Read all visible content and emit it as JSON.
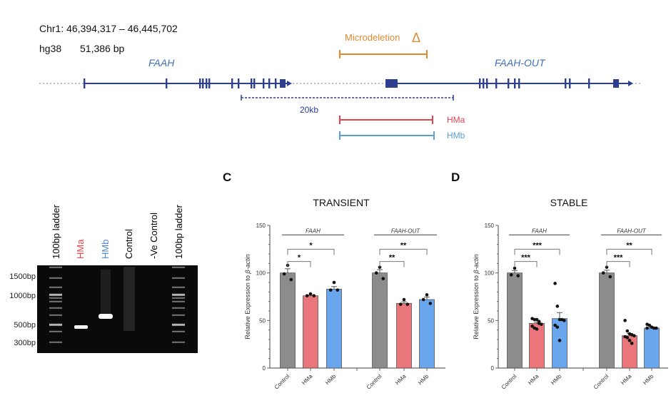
{
  "map": {
    "coordinates": "Chr1: 46,394,317 – 46,445,702",
    "assembly": "hg38",
    "length": "51,386 bp",
    "gene_left": "FAAH",
    "gene_right": "FAAH-OUT",
    "microdeletion_label": "Microdeletion",
    "delta_symbol": "Δ",
    "scale_label": "20kb",
    "hma_label": "HMa",
    "hmb_label": "HMb",
    "colors": {
      "gene": "#2e3f8f",
      "microdeletion": "#e08a2e",
      "hma": "#e0464f",
      "hmb": "#5a9fd6",
      "label_blue": "#3f6fb5"
    }
  },
  "gel": {
    "lanes": [
      {
        "label": "100bp ladder",
        "color": "#000000"
      },
      {
        "label": "HMa",
        "color": "#e0464f"
      },
      {
        "label": "HMb",
        "color": "#4f86c9"
      },
      {
        "label": "Control",
        "color": "#000000"
      },
      {
        "label": "-Ve Control",
        "color": "#000000"
      },
      {
        "label": "100bp ladder",
        "color": "#000000"
      }
    ],
    "markers": [
      "1500bp",
      "1000bp",
      "500bp",
      "300bp"
    ]
  },
  "chart_data": [
    {
      "panel": "C",
      "type": "bar",
      "title": "TRANSIENT",
      "ylabel": "Relative Expression to ",
      "ylabel_italic": "β-actin",
      "ylim": [
        0,
        150
      ],
      "yticks": [
        "0",
        "50",
        "100",
        "150"
      ],
      "categories": [
        "Control",
        "HMa",
        "HMb",
        "Control",
        "HMa",
        "HMb"
      ],
      "groups": [
        "FAAH",
        "FAAH-OUT"
      ],
      "values": [
        100,
        76,
        83,
        100,
        68,
        72
      ],
      "points": [
        [
          108,
          99,
          93
        ],
        [
          78,
          76,
          76
        ],
        [
          90,
          82,
          82
        ],
        [
          106,
          100,
          94
        ],
        [
          72,
          67,
          67
        ],
        [
          77,
          72,
          68
        ]
      ],
      "colors": [
        "#8c8c8c",
        "#e8767a",
        "#6aa6ee",
        "#8c8c8c",
        "#e8767a",
        "#6aa6ee"
      ],
      "significance": [
        {
          "group": 0,
          "compare": "Control vs HMa",
          "label": "*"
        },
        {
          "group": 0,
          "compare": "Control vs HMb",
          "label": "*"
        },
        {
          "group": 1,
          "compare": "Control vs HMa",
          "label": "**"
        },
        {
          "group": 1,
          "compare": "Control vs HMb",
          "label": "**"
        }
      ]
    },
    {
      "panel": "D",
      "type": "bar",
      "title": "STABLE",
      "ylabel": "Relative Expression to ",
      "ylabel_italic": "β-actin",
      "ylim": [
        0,
        150
      ],
      "yticks": [
        "0",
        "50",
        "100",
        "150"
      ],
      "categories": [
        "Control",
        "HMa",
        "HMb",
        "Control",
        "HMa",
        "HMb"
      ],
      "groups": [
        "FAAH",
        "FAAH-OUT"
      ],
      "values": [
        100,
        47,
        52,
        100,
        34,
        42
      ],
      "points": [
        [
          105,
          98,
          97
        ],
        [
          52,
          51,
          51,
          49,
          46,
          44,
          42,
          41,
          47
        ],
        [
          89,
          65,
          51,
          51,
          50,
          45,
          43,
          29
        ],
        [
          106,
          100,
          96
        ],
        [
          50,
          39,
          36,
          35,
          34,
          33,
          32,
          29,
          26
        ],
        [
          46,
          45,
          43,
          42,
          42,
          42
        ]
      ],
      "colors": [
        "#8c8c8c",
        "#e8767a",
        "#6aa6ee",
        "#8c8c8c",
        "#e8767a",
        "#6aa6ee"
      ],
      "significance": [
        {
          "group": 0,
          "compare": "Control vs HMa",
          "label": "***"
        },
        {
          "group": 0,
          "compare": "Control vs HMb",
          "label": "***"
        },
        {
          "group": 1,
          "compare": "Control vs HMa",
          "label": "***"
        },
        {
          "group": 1,
          "compare": "Control vs HMb",
          "label": "**"
        }
      ]
    }
  ]
}
